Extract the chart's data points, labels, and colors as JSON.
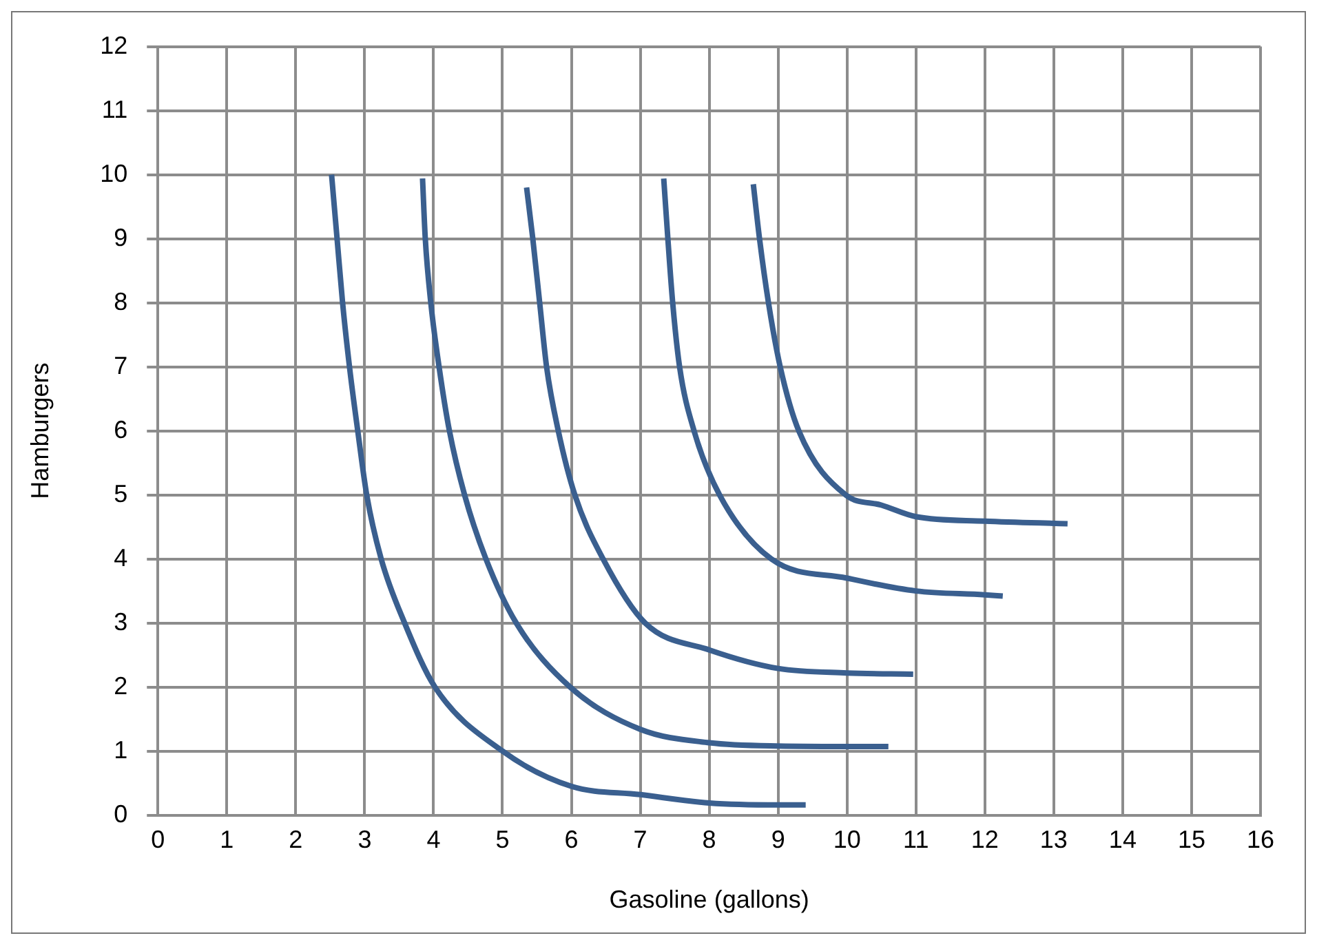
{
  "chart_data": {
    "type": "line",
    "xlabel": "Gasoline (gallons)",
    "ylabel": "Hamburgers",
    "xlim": [
      0,
      16
    ],
    "ylim": [
      0,
      12
    ],
    "xticks": [
      0,
      1,
      2,
      3,
      4,
      5,
      6,
      7,
      8,
      9,
      10,
      11,
      12,
      13,
      14,
      15,
      16
    ],
    "yticks": [
      0,
      1,
      2,
      3,
      4,
      5,
      6,
      7,
      8,
      9,
      10,
      11,
      12
    ],
    "grid": true,
    "legend": false,
    "marker": "none",
    "line_style": "solid",
    "series": [
      {
        "color": "#3a5f8f",
        "x": [
          2.52,
          2.6,
          2.68,
          2.78,
          2.9,
          3.03,
          3.24,
          3.58,
          4.02,
          5.0,
          6.0,
          7.0,
          8.0,
          9.0,
          9.4
        ],
        "values": [
          10.0,
          9,
          8,
          7,
          6,
          5,
          4,
          3,
          2,
          1,
          0.45,
          0.32,
          0.19,
          0.16,
          0.16
        ]
      },
      {
        "color": "#3a5f8f",
        "x": [
          3.84,
          3.88,
          3.96,
          4.08,
          4.23,
          4.45,
          4.76,
          5.2,
          5.98,
          7.0,
          8.0,
          9.0,
          10.6
        ],
        "values": [
          9.94,
          9,
          8,
          7,
          6,
          5,
          4,
          3,
          2,
          1.34,
          1.13,
          1.08,
          1.07
        ]
      },
      {
        "color": "#3a5f8f",
        "x": [
          5.35,
          5.44,
          5.54,
          5.64,
          5.81,
          6.05,
          6.46,
          7.07,
          8.0,
          9.0,
          10.0,
          10.96
        ],
        "values": [
          9.8,
          9,
          8,
          7,
          6,
          5,
          4,
          3,
          2.58,
          2.29,
          2.22,
          2.2
        ]
      },
      {
        "color": "#3a5f8f",
        "x": [
          7.34,
          7.4,
          7.47,
          7.57,
          7.78,
          8.15,
          8.9,
          10.0,
          11.0,
          12.0,
          12.26
        ],
        "values": [
          9.94,
          9,
          8,
          7,
          6,
          5,
          4,
          3.7,
          3.5,
          3.44,
          3.42
        ]
      },
      {
        "color": "#3a5f8f",
        "x": [
          8.64,
          8.73,
          8.86,
          9.03,
          9.3,
          9.98,
          10.5,
          11.0,
          12.0,
          13.2
        ],
        "values": [
          9.85,
          9,
          8,
          7,
          6,
          5,
          4.84,
          4.66,
          4.59,
          4.55
        ]
      }
    ]
  }
}
